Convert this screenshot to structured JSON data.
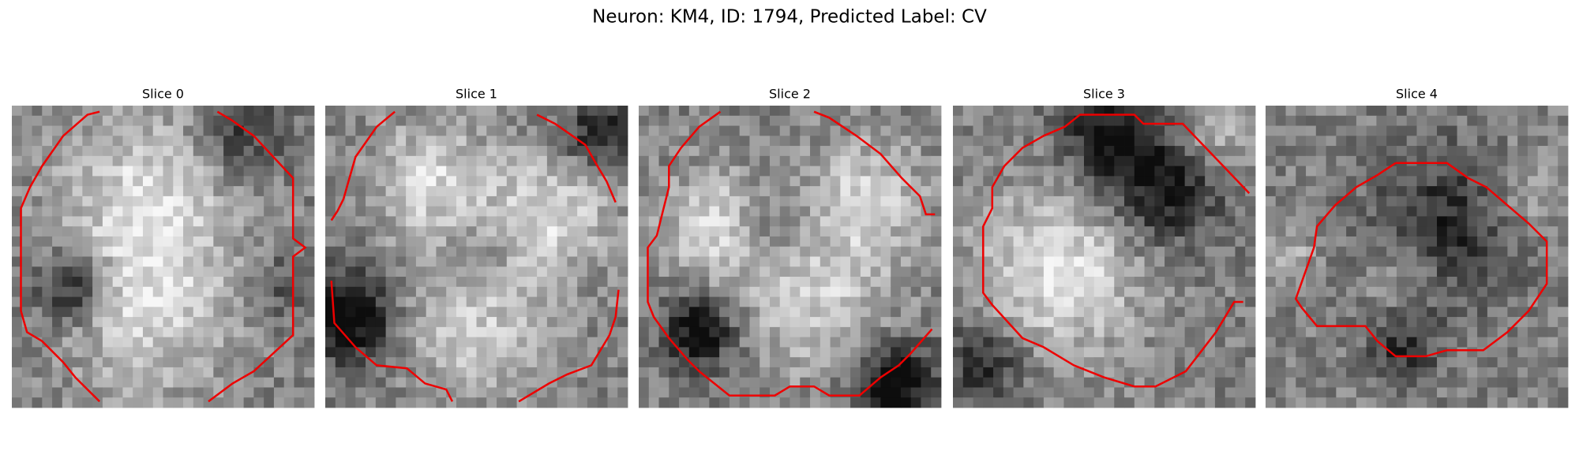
{
  "title": "Neuron: KM4, ID: 1794, Predicted Label: CV",
  "panels": [
    {
      "title": "Slice 0"
    },
    {
      "title": "Slice 1"
    },
    {
      "title": "Slice 2"
    },
    {
      "title": "Slice 3"
    },
    {
      "title": "Slice 4"
    }
  ]
}
